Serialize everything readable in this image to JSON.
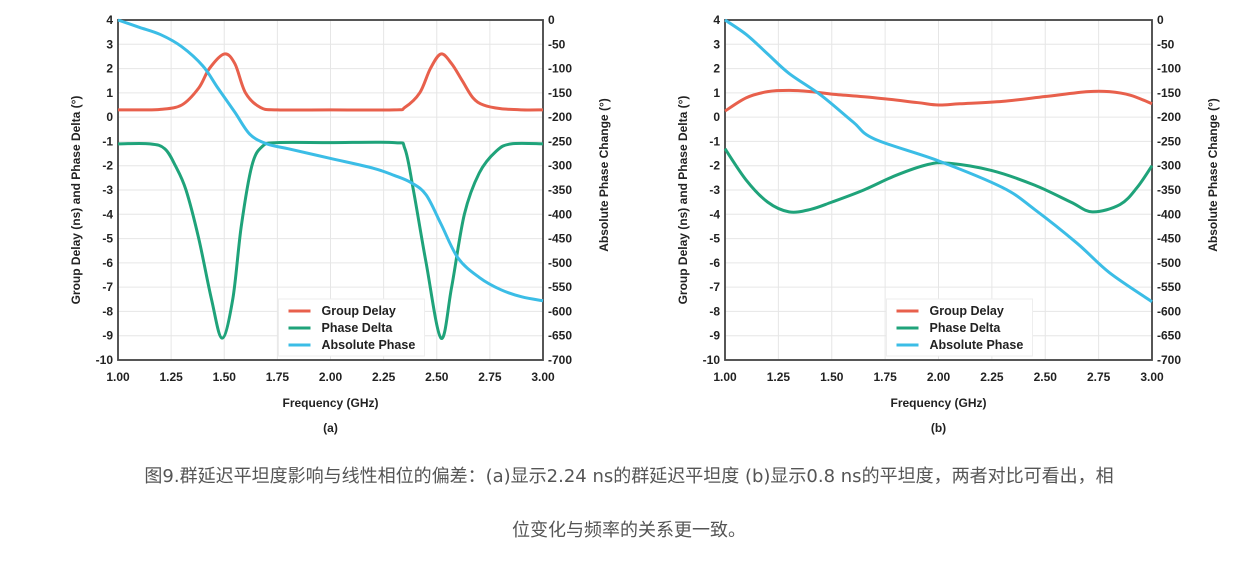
{
  "chart_data": [
    {
      "type": "line",
      "panel_label": "(a)",
      "xlabel": "Frequency (GHz)",
      "ylabel": "Group Delay (ns) and Phase Delta (°)",
      "y2label": "Absolute Phase Change (°)",
      "xlim": [
        1.0,
        3.0
      ],
      "ylim": [
        -10,
        4
      ],
      "y2lim": [
        -700,
        0
      ],
      "xticks": [
        "1.00",
        "1.25",
        "1.50",
        "1.75",
        "2.00",
        "2.25",
        "2.50",
        "2.75",
        "3.00"
      ],
      "yticks": [
        "4",
        "3",
        "2",
        "1",
        "0",
        "-1",
        "-2",
        "-3",
        "-4",
        "-5",
        "-6",
        "-7",
        "-8",
        "-9",
        "-10"
      ],
      "y2ticks": [
        "0",
        "-50",
        "-100",
        "-150",
        "-200",
        "-250",
        "-300",
        "-350",
        "-400",
        "-450",
        "-500",
        "-550",
        "-600",
        "-650",
        "-700"
      ],
      "grid": true,
      "legend": "bottom-center",
      "series": [
        {
          "name": "Group Delay",
          "axis": "left",
          "color": "#e8604c",
          "x": [
            1.0,
            1.1,
            1.2,
            1.3,
            1.38,
            1.43,
            1.5,
            1.55,
            1.6,
            1.67,
            1.75,
            2.0,
            2.3,
            2.35,
            2.42,
            2.47,
            2.52,
            2.57,
            2.62,
            2.67,
            2.72,
            2.8,
            2.9,
            3.0
          ],
          "y": [
            0.3,
            0.3,
            0.32,
            0.5,
            1.2,
            2.0,
            2.6,
            2.2,
            1.0,
            0.4,
            0.3,
            0.3,
            0.3,
            0.4,
            1.0,
            2.0,
            2.6,
            2.2,
            1.5,
            0.8,
            0.5,
            0.35,
            0.3,
            0.3
          ]
        },
        {
          "name": "Phase Delta",
          "axis": "left",
          "color": "#1fa37a",
          "x": [
            1.0,
            1.15,
            1.22,
            1.27,
            1.32,
            1.38,
            1.44,
            1.49,
            1.54,
            1.58,
            1.63,
            1.68,
            1.75,
            2.0,
            2.3,
            2.35,
            2.39,
            2.45,
            2.52,
            2.57,
            2.63,
            2.7,
            2.78,
            2.85,
            3.0
          ],
          "y": [
            -1.1,
            -1.1,
            -1.3,
            -2.0,
            -3.0,
            -5.0,
            -7.5,
            -9.1,
            -7.5,
            -4.5,
            -2.0,
            -1.2,
            -1.05,
            -1.05,
            -1.05,
            -1.3,
            -3.0,
            -6.0,
            -9.1,
            -7.0,
            -4.0,
            -2.3,
            -1.4,
            -1.1,
            -1.1
          ]
        },
        {
          "name": "Absolute Phase",
          "axis": "right",
          "color": "#3bbde6",
          "x": [
            1.0,
            1.1,
            1.2,
            1.3,
            1.4,
            1.47,
            1.55,
            1.62,
            1.7,
            1.8,
            2.0,
            2.2,
            2.3,
            2.38,
            2.45,
            2.52,
            2.6,
            2.7,
            2.8,
            2.9,
            3.0
          ],
          "y": [
            0,
            -15,
            -30,
            -55,
            -95,
            -140,
            -190,
            -235,
            -255,
            -265,
            -285,
            -305,
            -320,
            -335,
            -360,
            -420,
            -490,
            -530,
            -555,
            -570,
            -578
          ]
        }
      ]
    },
    {
      "type": "line",
      "panel_label": "(b)",
      "xlabel": "Frequency (GHz)",
      "ylabel": "Group Delay (ns) and Phase Delta (°)",
      "y2label": "Absolute Phase Change (°)",
      "xlim": [
        1.0,
        3.0
      ],
      "ylim": [
        -10,
        4
      ],
      "y2lim": [
        -700,
        0
      ],
      "xticks": [
        "1.00",
        "1.25",
        "1.50",
        "1.75",
        "2.00",
        "2.25",
        "2.50",
        "2.75",
        "3.00"
      ],
      "yticks": [
        "4",
        "3",
        "2",
        "1",
        "0",
        "-1",
        "-2",
        "-3",
        "-4",
        "-5",
        "-6",
        "-7",
        "-8",
        "-9",
        "-10"
      ],
      "y2ticks": [
        "0",
        "-50",
        "-100",
        "-150",
        "-200",
        "-250",
        "-300",
        "-350",
        "-400",
        "-450",
        "-500",
        "-550",
        "-600",
        "-650",
        "-700"
      ],
      "grid": true,
      "legend": "bottom-center",
      "series": [
        {
          "name": "Group Delay",
          "axis": "left",
          "color": "#e8604c",
          "x": [
            1.0,
            1.1,
            1.2,
            1.3,
            1.4,
            1.5,
            1.7,
            1.9,
            2.0,
            2.1,
            2.3,
            2.5,
            2.7,
            2.8,
            2.9,
            3.0
          ],
          "y": [
            0.25,
            0.8,
            1.05,
            1.1,
            1.05,
            0.95,
            0.8,
            0.6,
            0.5,
            0.55,
            0.65,
            0.85,
            1.05,
            1.05,
            0.9,
            0.55
          ]
        },
        {
          "name": "Phase Delta",
          "axis": "left",
          "color": "#1fa37a",
          "x": [
            1.0,
            1.1,
            1.2,
            1.3,
            1.4,
            1.5,
            1.65,
            1.8,
            1.95,
            2.05,
            2.25,
            2.45,
            2.62,
            2.72,
            2.85,
            2.93,
            3.0
          ],
          "y": [
            -1.3,
            -2.6,
            -3.5,
            -3.9,
            -3.8,
            -3.5,
            -3.0,
            -2.4,
            -1.95,
            -1.9,
            -2.2,
            -2.8,
            -3.5,
            -3.9,
            -3.6,
            -2.9,
            -2.0
          ]
        },
        {
          "name": "Absolute Phase",
          "axis": "right",
          "color": "#3bbde6",
          "x": [
            1.0,
            1.1,
            1.2,
            1.3,
            1.45,
            1.6,
            1.7,
            2.0,
            2.3,
            2.45,
            2.65,
            2.8,
            3.0
          ],
          "y": [
            0,
            -30,
            -70,
            -110,
            -155,
            -210,
            -245,
            -290,
            -345,
            -390,
            -460,
            -520,
            -580
          ]
        }
      ]
    }
  ],
  "caption": {
    "line1": "图9.群延迟平坦度影响与线性相位的偏差：(a)显示2.24 ns的群延迟平坦度 (b)显示0.8 ns的平坦度，两者对比可看出，相",
    "line2": "位变化与频率的关系更一致。"
  }
}
